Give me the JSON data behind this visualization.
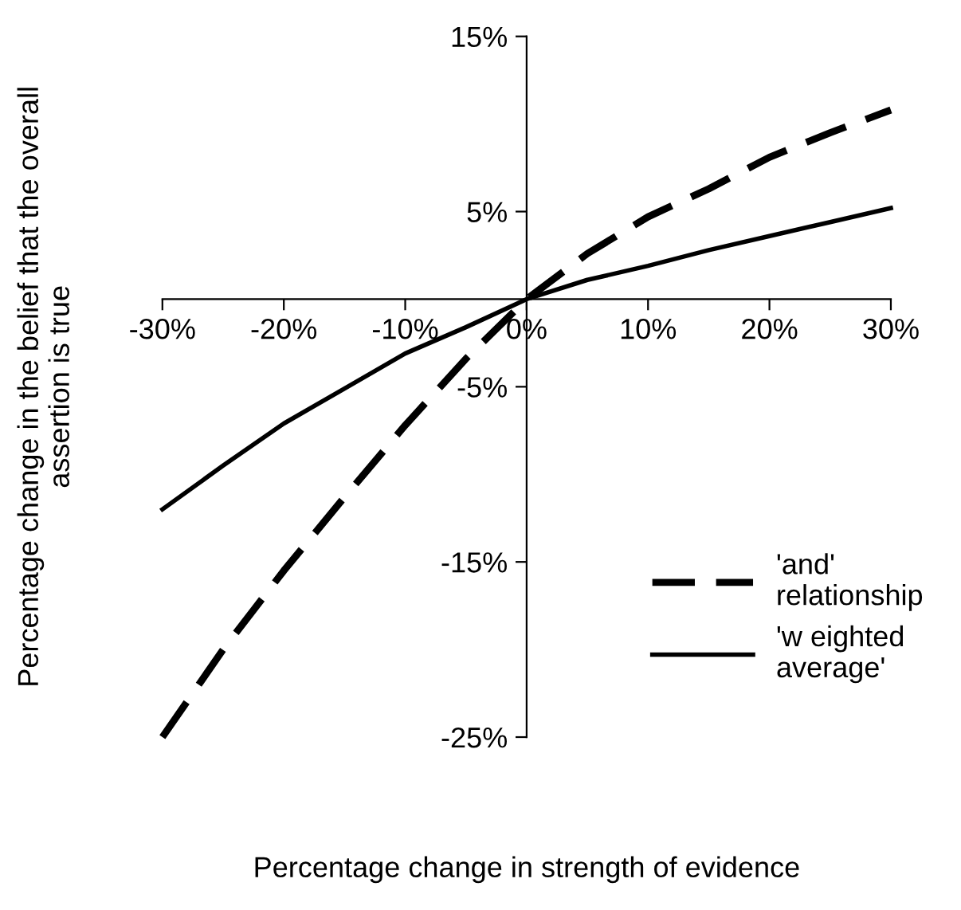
{
  "chart_data": {
    "type": "line",
    "xlabel": "Percentage change in strength of evidence",
    "ylabel": "Percentage change in the belief that the overall\nassertion is true",
    "x": [
      -30,
      -25,
      -20,
      -15,
      -10,
      -5,
      0,
      5,
      10,
      15,
      20,
      25,
      30
    ],
    "series": [
      {
        "name": "'and'\nrelationship",
        "color": "#000000",
        "line_style": "dashed",
        "values": [
          -25,
          -20,
          -15.5,
          -11.3,
          -7.2,
          -3.4,
          0,
          2.6,
          4.7,
          6.3,
          8.1,
          9.5,
          10.8
        ]
      },
      {
        "name": "'w eighted\naverage'",
        "color": "#000000",
        "line_style": "solid",
        "values": [
          -12,
          -9.5,
          -7.1,
          -5.1,
          -3.1,
          -1.6,
          0,
          1.1,
          1.9,
          2.8,
          3.6,
          4.4,
          5.2
        ]
      }
    ],
    "xlim": [
      -30,
      30
    ],
    "ylim": [
      -25,
      15
    ],
    "xticks": [
      {
        "value": -30,
        "label": "-30%"
      },
      {
        "value": -20,
        "label": "-20%"
      },
      {
        "value": -10,
        "label": "-10%"
      },
      {
        "value": 0,
        "label": "0%"
      },
      {
        "value": 10,
        "label": "10%"
      },
      {
        "value": 20,
        "label": "20%"
      },
      {
        "value": 30,
        "label": "30%"
      }
    ],
    "yticks": [
      {
        "value": -25,
        "label": "-25%"
      },
      {
        "value": -15,
        "label": "-15%"
      },
      {
        "value": -5,
        "label": "-5%"
      },
      {
        "value": 5,
        "label": "5%"
      },
      {
        "value": 15,
        "label": "15%"
      }
    ],
    "grid": false,
    "marker": "none",
    "legend": "bottom right"
  }
}
